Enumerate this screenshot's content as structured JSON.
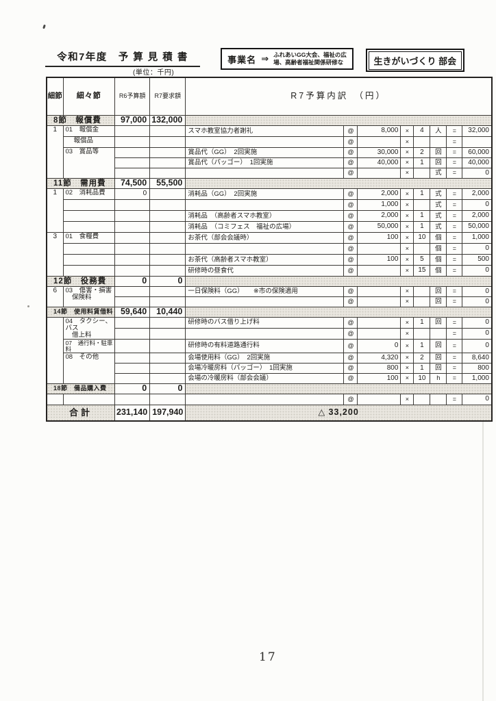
{
  "colors": {
    "ink": "#1e1d1b",
    "border": "#3a3834",
    "shade": "#e9e6df"
  },
  "header": {
    "title": "令和7年度　予 算 見 積 書",
    "unit_note": "(単位：千円)",
    "project": {
      "label": "事業名",
      "arrow": "⇒",
      "name_line1": "ふれあいGG大会、福祉の広",
      "name_line2": "場、高齢者福祉関係研修な"
    },
    "committee": "生きがいづくり 部会"
  },
  "table": {
    "symbols": {
      "at": "@",
      "times": "×",
      "equals": "="
    },
    "columns": {
      "sub": "細節",
      "item": "細々節",
      "r6": "R6予算額",
      "r7": "R7要求額",
      "detail": "R7予算内訳　（円）"
    },
    "rows": [
      {
        "t": "sec",
        "label": "8節　報償費",
        "r6": "97,000",
        "r7": "132,000"
      },
      {
        "t": "row",
        "sub": "1",
        "subspan": 5,
        "item": "01　報償金",
        "itemspan": 1,
        "r6": "",
        "r7": "",
        "desc": "スマホ教室協力者謝礼",
        "price": "8,000",
        "qty": "4",
        "unit": "人",
        "amt": "32,000"
      },
      {
        "t": "row",
        "item": "報償品",
        "itemspan": 1,
        "itemcls": "indent",
        "r6": "",
        "r7": "",
        "desc": "",
        "price": "",
        "qty": "",
        "unit": "",
        "amt": ""
      },
      {
        "t": "row",
        "item": "03　賞品等",
        "itemspan": 3,
        "r6": "",
        "r7": "",
        "desc": "賞品代（GG）　2回実施",
        "price": "30,000",
        "qty": "2",
        "unit": "回",
        "amt": "60,000"
      },
      {
        "t": "row",
        "r6": "",
        "r7": "",
        "desc": "賞品代（パッゴー）　1回実施",
        "price": "40,000",
        "qty": "1",
        "unit": "回",
        "amt": "40,000"
      },
      {
        "t": "row",
        "r6": "",
        "r7": "",
        "desc": "",
        "price": "",
        "qty": "",
        "unit": "式",
        "amt": "0"
      },
      {
        "t": "sec",
        "label": "11節　需用費",
        "r6": "74,500",
        "r7": "55,500"
      },
      {
        "t": "row",
        "sub": "1",
        "subspan": 4,
        "item": "02　消耗品費",
        "itemspan": 1,
        "r6": "0",
        "r7": "",
        "desc": "消耗品（GG）　2回実施",
        "price": "2,000",
        "qty": "1",
        "unit": "式",
        "amt": "2,000"
      },
      {
        "t": "row",
        "item": "",
        "itemspan": 1,
        "r6": "",
        "r7": "",
        "desc": "",
        "price": "1,000",
        "qty": "",
        "unit": "式",
        "amt": "0"
      },
      {
        "t": "row",
        "item": "",
        "itemspan": 1,
        "r6": "",
        "r7": "",
        "desc": "消耗品　（高齢者スマホ教室）",
        "price": "2,000",
        "qty": "1",
        "unit": "式",
        "amt": "2,000"
      },
      {
        "t": "row",
        "item": "",
        "itemspan": 1,
        "r6": "",
        "r7": "",
        "desc": "消耗品　（コミフェス　福祉の広場）",
        "price": "50,000",
        "qty": "1",
        "unit": "式",
        "amt": "50,000"
      },
      {
        "t": "row",
        "sub": "3",
        "subspan": 4,
        "item": "01　食糧費",
        "itemspan": 1,
        "r6": "",
        "r7": "",
        "desc": "お茶代（部会会議時）",
        "price": "100",
        "qty": "10",
        "unit": "個",
        "amt": "1,000"
      },
      {
        "t": "row",
        "item": "",
        "itemspan": 1,
        "r6": "",
        "r7": "",
        "desc": "",
        "price": "",
        "qty": "",
        "unit": "個",
        "amt": "0"
      },
      {
        "t": "row",
        "item": "",
        "itemspan": 1,
        "r6": "",
        "r7": "",
        "desc": "お茶代（高齢者スマホ教室）",
        "price": "100",
        "qty": "5",
        "unit": "個",
        "amt": "500"
      },
      {
        "t": "row",
        "item": "",
        "itemspan": 1,
        "r6": "",
        "r7": "",
        "desc": "研修時の昼食代",
        "price": "",
        "qty": "15",
        "unit": "個",
        "amt": "0"
      },
      {
        "t": "sec",
        "label": "12節　役務費",
        "r6": "0",
        "r7": "0"
      },
      {
        "t": "row",
        "sub": "6",
        "subspan": 2,
        "item": "03　傷害・損害\n　保険料",
        "itemspan": 2,
        "r6": "",
        "r7": "",
        "desc": "一日保険料（GG）　　※市の保険適用",
        "price": "",
        "qty": "",
        "unit": "回",
        "amt": "0"
      },
      {
        "t": "row",
        "r6": "",
        "r7": "",
        "desc": "",
        "price": "",
        "qty": "",
        "unit": "回",
        "amt": "0"
      },
      {
        "t": "sec",
        "label": "14節　使用料賃借料",
        "r6": "59,640",
        "r7": "10,440",
        "sm": true
      },
      {
        "t": "row",
        "sub": "",
        "subspan": 6,
        "item": "04　タクシー、バス\n　借上料",
        "itemspan": 2,
        "r6": "",
        "r7": "",
        "desc": "研修時のバス借り上げ料",
        "price": "",
        "qty": "1",
        "unit": "回",
        "amt": "0"
      },
      {
        "t": "row",
        "r6": "",
        "r7": "",
        "desc": "",
        "price": "",
        "qty": "",
        "unit": "",
        "amt": "0"
      },
      {
        "t": "row",
        "item": "07　通行料・駐車料",
        "itemspan": 1,
        "itemcls": "sm",
        "r6": "",
        "r7": "",
        "desc": "研修時の有料道路通行料",
        "price": "0",
        "qty": "1",
        "unit": "回",
        "amt": "0"
      },
      {
        "t": "row",
        "item": "08　その他",
        "itemspan": 3,
        "r6": "",
        "r7": "",
        "desc": "会場使用料（GG）　2回実施",
        "price": "4,320",
        "qty": "2",
        "unit": "回",
        "amt": "8,640"
      },
      {
        "t": "row",
        "r6": "",
        "r7": "",
        "desc": "会場冷暖房料（パッゴー）　1回実施",
        "price": "800",
        "qty": "1",
        "unit": "回",
        "amt": "800"
      },
      {
        "t": "row",
        "r6": "",
        "r7": "",
        "desc": "会場の冷暖房料（部会会議）",
        "price": "100",
        "qty": "10",
        "unit": "h",
        "amt": "1,000"
      },
      {
        "t": "sec",
        "label": "18節　備品購入費",
        "r6": "0",
        "r7": "0",
        "sm": true
      },
      {
        "t": "row",
        "sub": "",
        "subspan": 1,
        "item": "",
        "itemspan": 1,
        "r6": "",
        "r7": "",
        "desc": "",
        "price": "",
        "qty": "",
        "unit": "",
        "amt": "0"
      }
    ],
    "total": {
      "label": "合計",
      "r6": "231,140",
      "r7": "197,940",
      "diff": "△ 33,200"
    }
  },
  "footer": {
    "page_number": "17"
  }
}
